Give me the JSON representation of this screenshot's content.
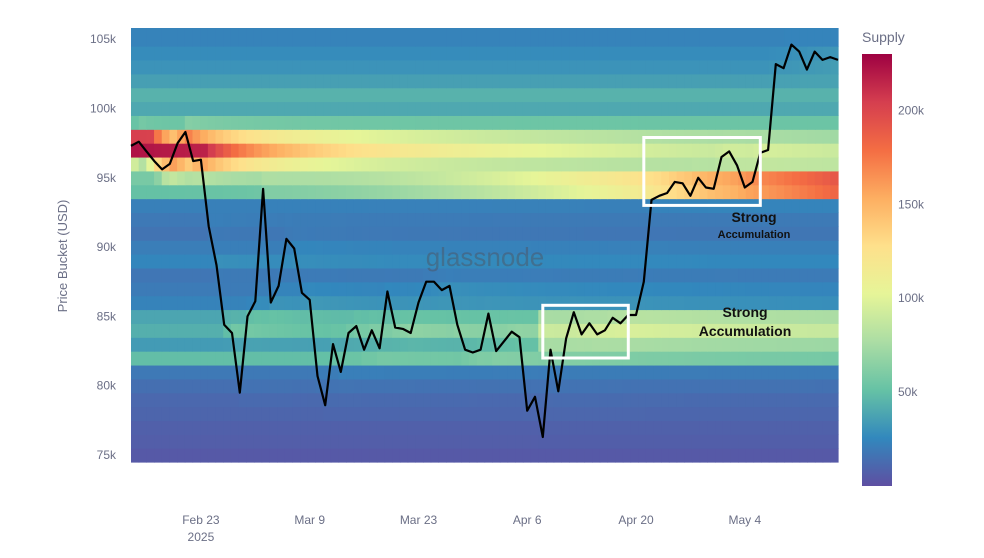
{
  "chart_data": {
    "type": "heatmap",
    "title": "",
    "ylabel": "Price Bucket (USD)",
    "xlabel": "",
    "ylim": [
      74500,
      105800
    ],
    "y_ticks": [
      {
        "value": 75000,
        "label": "75k"
      },
      {
        "value": 80000,
        "label": "80k"
      },
      {
        "value": 85000,
        "label": "85k"
      },
      {
        "value": 90000,
        "label": "90k"
      },
      {
        "value": 95000,
        "label": "95k"
      },
      {
        "value": 100000,
        "label": "100k"
      },
      {
        "value": 105000,
        "label": "105k"
      }
    ],
    "x_range": [
      "2025-02-14",
      "2025-05-16"
    ],
    "x_ticks": [
      {
        "date": "2025-02-23",
        "label": "Feb 23",
        "sublabel": "2025"
      },
      {
        "date": "2025-03-09",
        "label": "Mar 9",
        "sublabel": ""
      },
      {
        "date": "2025-03-23",
        "label": "Mar 23",
        "sublabel": ""
      },
      {
        "date": "2025-04-06",
        "label": "Apr 6",
        "sublabel": ""
      },
      {
        "date": "2025-04-20",
        "label": "Apr 20",
        "sublabel": ""
      },
      {
        "date": "2025-05-04",
        "label": "May 4",
        "sublabel": ""
      }
    ],
    "colorbar": {
      "title": "Supply",
      "range": [
        0,
        230000
      ],
      "ticks": [
        {
          "value": 50000,
          "label": "50k"
        },
        {
          "value": 100000,
          "label": "100k"
        },
        {
          "value": 150000,
          "label": "150k"
        },
        {
          "value": 200000,
          "label": "200k"
        }
      ],
      "colors": [
        "#5e4fa2",
        "#3288bd",
        "#66c2a5",
        "#abdda4",
        "#e6f598",
        "#fee08b",
        "#fdae61",
        "#f46d43",
        "#d53e4f",
        "#9e0142"
      ]
    },
    "price_series": [
      [
        "2025-02-14",
        97300
      ],
      [
        "2025-02-15",
        97600
      ],
      [
        "2025-02-16",
        96900
      ],
      [
        "2025-02-17",
        96200
      ],
      [
        "2025-02-18",
        95600
      ],
      [
        "2025-02-19",
        96000
      ],
      [
        "2025-02-20",
        97500
      ],
      [
        "2025-02-21",
        98300
      ],
      [
        "2025-02-22",
        96200
      ],
      [
        "2025-02-23",
        96300
      ],
      [
        "2025-02-24",
        91500
      ],
      [
        "2025-02-25",
        88700
      ],
      [
        "2025-02-26",
        84400
      ],
      [
        "2025-02-27",
        83800
      ],
      [
        "2025-02-28",
        79500
      ],
      [
        "2025-03-01",
        85000
      ],
      [
        "2025-03-02",
        86100
      ],
      [
        "2025-03-03",
        94200
      ],
      [
        "2025-03-04",
        86000
      ],
      [
        "2025-03-05",
        87200
      ],
      [
        "2025-03-06",
        90600
      ],
      [
        "2025-03-07",
        89900
      ],
      [
        "2025-03-08",
        86700
      ],
      [
        "2025-03-09",
        86200
      ],
      [
        "2025-03-10",
        80700
      ],
      [
        "2025-03-11",
        78600
      ],
      [
        "2025-03-12",
        83000
      ],
      [
        "2025-03-13",
        81000
      ],
      [
        "2025-03-14",
        83800
      ],
      [
        "2025-03-15",
        84300
      ],
      [
        "2025-03-16",
        82600
      ],
      [
        "2025-03-17",
        84000
      ],
      [
        "2025-03-18",
        82700
      ],
      [
        "2025-03-19",
        86800
      ],
      [
        "2025-03-20",
        84200
      ],
      [
        "2025-03-21",
        84100
      ],
      [
        "2025-03-22",
        83800
      ],
      [
        "2025-03-23",
        86000
      ],
      [
        "2025-03-24",
        87500
      ],
      [
        "2025-03-25",
        87500
      ],
      [
        "2025-03-26",
        86900
      ],
      [
        "2025-03-27",
        87200
      ],
      [
        "2025-03-28",
        84400
      ],
      [
        "2025-03-29",
        82600
      ],
      [
        "2025-03-30",
        82400
      ],
      [
        "2025-03-31",
        82600
      ],
      [
        "2025-04-01",
        85200
      ],
      [
        "2025-04-02",
        82500
      ],
      [
        "2025-04-03",
        83200
      ],
      [
        "2025-04-04",
        83900
      ],
      [
        "2025-04-05",
        83500
      ],
      [
        "2025-04-06",
        78200
      ],
      [
        "2025-04-07",
        79200
      ],
      [
        "2025-04-08",
        76300
      ],
      [
        "2025-04-09",
        82600
      ],
      [
        "2025-04-10",
        79600
      ],
      [
        "2025-04-11",
        83400
      ],
      [
        "2025-04-12",
        85300
      ],
      [
        "2025-04-13",
        83700
      ],
      [
        "2025-04-14",
        84500
      ],
      [
        "2025-04-15",
        83700
      ],
      [
        "2025-04-16",
        84000
      ],
      [
        "2025-04-17",
        84900
      ],
      [
        "2025-04-18",
        84500
      ],
      [
        "2025-04-19",
        85100
      ],
      [
        "2025-04-20",
        85100
      ],
      [
        "2025-04-21",
        87500
      ],
      [
        "2025-04-22",
        93400
      ],
      [
        "2025-04-23",
        93700
      ],
      [
        "2025-04-24",
        93900
      ],
      [
        "2025-04-25",
        94700
      ],
      [
        "2025-04-26",
        94600
      ],
      [
        "2025-04-27",
        93700
      ],
      [
        "2025-04-28",
        95000
      ],
      [
        "2025-04-29",
        94300
      ],
      [
        "2025-04-30",
        94200
      ],
      [
        "2025-05-01",
        96500
      ],
      [
        "2025-05-02",
        96900
      ],
      [
        "2025-05-03",
        95900
      ],
      [
        "2025-05-04",
        94300
      ],
      [
        "2025-05-05",
        94700
      ],
      [
        "2025-05-06",
        96800
      ],
      [
        "2025-05-07",
        97000
      ],
      [
        "2025-05-08",
        103200
      ],
      [
        "2025-05-09",
        102900
      ],
      [
        "2025-05-10",
        104600
      ],
      [
        "2025-05-11",
        104100
      ],
      [
        "2025-05-12",
        102800
      ],
      [
        "2025-05-13",
        104100
      ],
      [
        "2025-05-14",
        103500
      ],
      [
        "2025-05-15",
        103700
      ],
      [
        "2025-05-16",
        103500
      ]
    ],
    "supply_bands": [
      {
        "low": 74500,
        "high": 75500,
        "supply": 8000
      },
      {
        "low": 75500,
        "high": 76500,
        "supply": 12000
      },
      {
        "low": 76500,
        "high": 77500,
        "supply": 14000
      },
      {
        "low": 77500,
        "high": 78500,
        "supply": 18000
      },
      {
        "low": 78500,
        "high": 79500,
        "supply": 20000
      },
      {
        "low": 79500,
        "high": 80500,
        "supply": 26000
      },
      {
        "low": 80500,
        "high": 81500,
        "supply": 34000
      },
      {
        "low": 81500,
        "high": 82500,
        "supply": 90000
      },
      {
        "low": 82500,
        "high": 83500,
        "supply": 62000
      },
      {
        "low": 83500,
        "high": 84500,
        "supply": 78000
      },
      {
        "low": 84500,
        "high": 85500,
        "supply": 70000
      },
      {
        "low": 85500,
        "high": 86500,
        "supply": 42000
      },
      {
        "low": 86500,
        "high": 87500,
        "supply": 36000
      },
      {
        "low": 87500,
        "high": 88500,
        "supply": 32000
      },
      {
        "low": 88500,
        "high": 89500,
        "supply": 45000
      },
      {
        "low": 89500,
        "high": 90500,
        "supply": 38000
      },
      {
        "low": 90500,
        "high": 91500,
        "supply": 30000
      },
      {
        "low": 91500,
        "high": 92500,
        "supply": 34000
      },
      {
        "low": 92500,
        "high": 93500,
        "supply": 40000
      },
      {
        "low": 93500,
        "high": 94500,
        "supply": 92000
      },
      {
        "low": 94500,
        "high": 95500,
        "supply": 105000
      },
      {
        "low": 95500,
        "high": 96500,
        "supply": 125000
      },
      {
        "low": 96500,
        "high": 97500,
        "supply": 175000
      },
      {
        "low": 97500,
        "high": 98500,
        "supply": 160000
      },
      {
        "low": 98500,
        "high": 99500,
        "supply": 95000
      },
      {
        "low": 99500,
        "high": 100500,
        "supply": 72000
      },
      {
        "low": 100500,
        "high": 101500,
        "supply": 80000
      },
      {
        "low": 101500,
        "high": 102500,
        "supply": 65000
      },
      {
        "low": 102500,
        "high": 103500,
        "supply": 55000
      },
      {
        "low": 103500,
        "high": 104500,
        "supply": 50000
      },
      {
        "low": 104500,
        "high": 105800,
        "supply": 42000
      }
    ],
    "annotations": [
      {
        "label": "Strong",
        "sublabel": "Accumulation",
        "box_x": [
          "2025-04-08",
          "2025-04-19"
        ],
        "box_y": [
          82000,
          85800
        ]
      },
      {
        "label": "Strong",
        "sublabel": "Accumulation",
        "box_x": [
          "2025-04-21",
          "2025-05-06"
        ],
        "box_y": [
          93000,
          97900
        ]
      }
    ],
    "annotation_text": [
      {
        "main": "Strong",
        "sub": "Accumulation"
      },
      {
        "main": "Strong Accumulation",
        "sub": ""
      }
    ],
    "watermark": "glassnode"
  }
}
